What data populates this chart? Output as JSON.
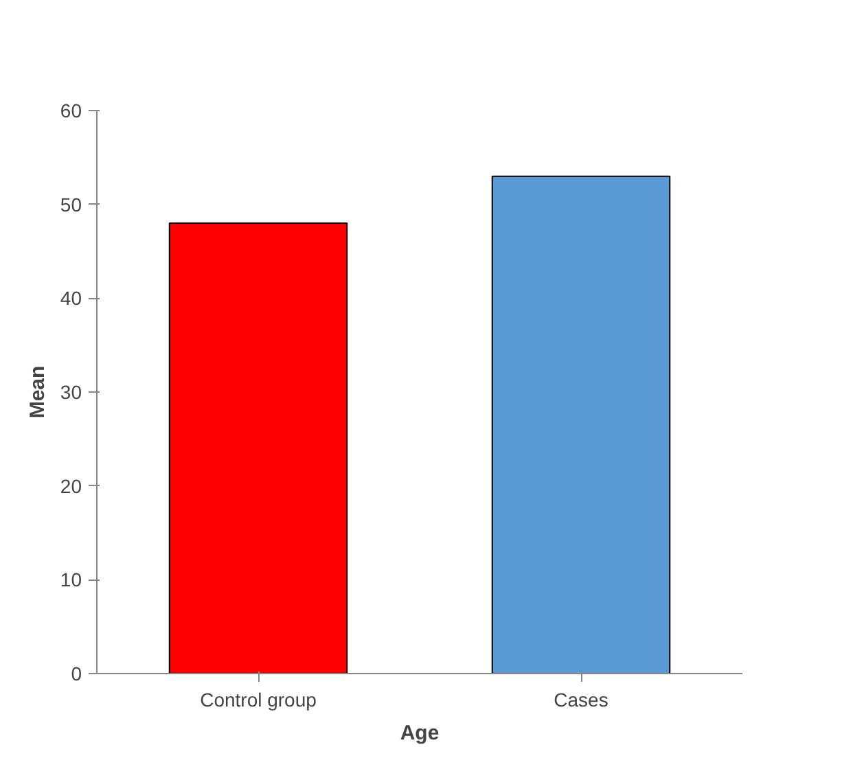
{
  "chart_data": {
    "type": "bar",
    "xlabel": "Age",
    "ylabel": "Mean",
    "categories": [
      "Control group",
      "Cases"
    ],
    "values": [
      48,
      53
    ],
    "colors": [
      "#ff0000",
      "#5b9bd5"
    ],
    "ylim": [
      0,
      60
    ],
    "yticks": [
      0,
      10,
      20,
      30,
      40,
      50,
      60
    ],
    "grid": false
  }
}
